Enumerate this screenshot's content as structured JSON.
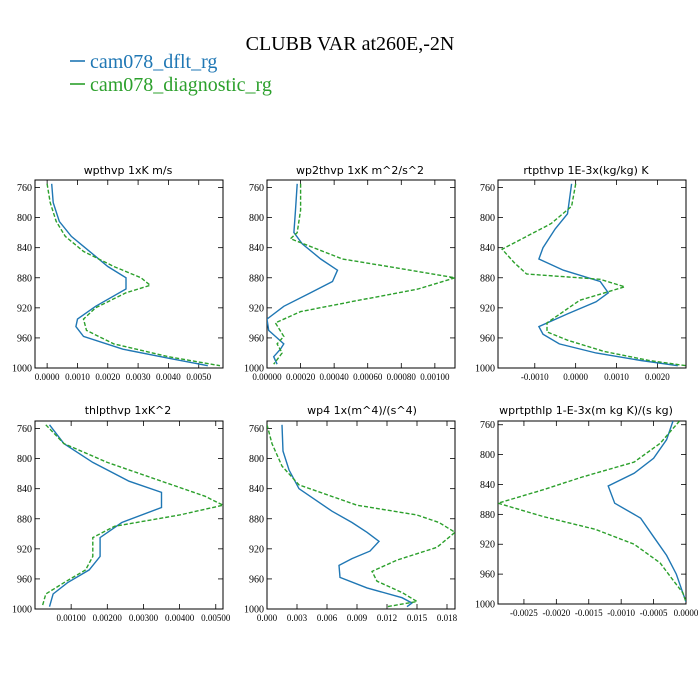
{
  "figure": {
    "title": "CLUBB VAR at260E,-2N",
    "legend": [
      {
        "label": "cam078_dflt_rg",
        "color": "#1f77b4",
        "dash": "solid"
      },
      {
        "label": "cam078_diagnostic_rg",
        "color": "#2ca02c",
        "dash": "dashed"
      }
    ]
  },
  "chart_data": [
    {
      "type": "line",
      "title": "wpthvp   1xK m/s",
      "ylim": [
        1000,
        750
      ],
      "yticks": [
        760,
        800,
        840,
        880,
        920,
        960,
        1000
      ],
      "ytick_labels": [
        "760",
        "800",
        "840",
        "880",
        "920",
        "960",
        "1000"
      ],
      "xlim": [
        -0.0004,
        0.0058
      ],
      "xticks": [
        0,
        0.001,
        0.002,
        0.003,
        0.004,
        0.005
      ],
      "xtick_labels": [
        "0.0000",
        "0.0010",
        "0.0020",
        "0.0030",
        "0.0040",
        "0.0050"
      ],
      "series": [
        {
          "name": "cam078_dflt_rg",
          "points": [
            [
              0.00015,
              755
            ],
            [
              0.0002,
              780
            ],
            [
              0.0004,
              805
            ],
            [
              0.0008,
              825
            ],
            [
              0.0014,
              845
            ],
            [
              0.002,
              865
            ],
            [
              0.0026,
              880
            ],
            [
              0.0026,
              895
            ],
            [
              0.0016,
              918
            ],
            [
              0.001,
              935
            ],
            [
              0.00095,
              945
            ],
            [
              0.0012,
              958
            ],
            [
              0.0025,
              975
            ],
            [
              0.004,
              987
            ],
            [
              0.0053,
              997
            ]
          ]
        },
        {
          "name": "cam078_diagnostic_rg",
          "points": [
            [
              0.0,
              755
            ],
            [
              0.0001,
              780
            ],
            [
              0.0003,
              805
            ],
            [
              0.0006,
              825
            ],
            [
              0.0012,
              845
            ],
            [
              0.0022,
              865
            ],
            [
              0.0031,
              880
            ],
            [
              0.0034,
              890
            ],
            [
              0.0026,
              900
            ],
            [
              0.0016,
              920
            ],
            [
              0.0012,
              935
            ],
            [
              0.0013,
              950
            ],
            [
              0.0022,
              968
            ],
            [
              0.004,
              985
            ],
            [
              0.0057,
              997
            ]
          ]
        }
      ]
    },
    {
      "type": "line",
      "title": "wp2thvp   1xK m^2/s^2",
      "ylim": [
        1000,
        750
      ],
      "yticks": [
        760,
        800,
        840,
        880,
        920,
        960,
        1000
      ],
      "ytick_labels": [
        "760",
        "800",
        "840",
        "880",
        "920",
        "960",
        "1000"
      ],
      "xlim": [
        0,
        0.00112
      ],
      "xticks": [
        0,
        0.0002,
        0.0004,
        0.0006,
        0.0008,
        0.001
      ],
      "xtick_labels": [
        "0.00000",
        "0.00020",
        "0.00040",
        "0.00060",
        "0.00080",
        "0.00100"
      ],
      "series": [
        {
          "name": "cam078_dflt_rg",
          "points": [
            [
              0.00018,
              755
            ],
            [
              0.00017,
              790
            ],
            [
              0.00016,
              820
            ],
            [
              0.00021,
              835
            ],
            [
              0.00032,
              855
            ],
            [
              0.00042,
              870
            ],
            [
              0.00039,
              885
            ],
            [
              0.00026,
              900
            ],
            [
              0.0001,
              918
            ],
            [
              0.0,
              935
            ],
            [
              1e-05,
              950
            ],
            [
              5e-05,
              958
            ],
            [
              0.0001,
              968
            ],
            [
              8e-05,
              975
            ],
            [
              4e-05,
              985
            ],
            [
              6e-05,
              995
            ]
          ]
        },
        {
          "name": "cam078_diagnostic_rg",
          "points": [
            [
              0.0002,
              755
            ],
            [
              0.0002,
              790
            ],
            [
              0.00018,
              820
            ],
            [
              0.00014,
              828
            ],
            [
              0.00045,
              855
            ],
            [
              0.0008,
              868
            ],
            [
              0.00112,
              880
            ],
            [
              0.0009,
              895
            ],
            [
              0.0005,
              912
            ],
            [
              0.0002,
              925
            ],
            [
              5e-05,
              940
            ],
            [
              0.0001,
              958
            ],
            [
              6e-05,
              968
            ],
            [
              9e-05,
              980
            ],
            [
              4e-05,
              995
            ]
          ]
        }
      ]
    },
    {
      "type": "line",
      "title": "rtpthvp   1E-3x(kg/kg) K",
      "ylim": [
        1000,
        750
      ],
      "yticks": [
        760,
        800,
        840,
        880,
        920,
        960,
        1000
      ],
      "ytick_labels": [
        "760",
        "800",
        "840",
        "880",
        "920",
        "960",
        "1000"
      ],
      "xlim": [
        -0.0019,
        0.0027
      ],
      "xticks": [
        -0.001,
        0,
        0.001,
        0.002
      ],
      "xtick_labels": [
        "-0.0010",
        "0.0000",
        "0.0010",
        "0.0020"
      ],
      "series": [
        {
          "name": "cam078_dflt_rg",
          "points": [
            [
              -0.0001,
              755
            ],
            [
              -0.0002,
              795
            ],
            [
              -0.0005,
              815
            ],
            [
              -0.0008,
              840
            ],
            [
              -0.0009,
              855
            ],
            [
              -0.0003,
              870
            ],
            [
              0.0006,
              885
            ],
            [
              0.0008,
              900
            ],
            [
              0.0005,
              912
            ],
            [
              -0.0002,
              928
            ],
            [
              -0.0009,
              945
            ],
            [
              -0.0008,
              955
            ],
            [
              -0.0004,
              968
            ],
            [
              0.0005,
              980
            ],
            [
              0.0016,
              990
            ],
            [
              0.0025,
              997
            ]
          ]
        },
        {
          "name": "cam078_diagnostic_rg",
          "points": [
            [
              0.0,
              755
            ],
            [
              -0.0001,
              785
            ],
            [
              -0.0006,
              808
            ],
            [
              -0.0012,
              825
            ],
            [
              -0.0018,
              842
            ],
            [
              -0.0015,
              860
            ],
            [
              -0.0012,
              875
            ],
            [
              0.0006,
              882
            ],
            [
              0.0012,
              892
            ],
            [
              0.0001,
              910
            ],
            [
              -0.0007,
              940
            ],
            [
              -0.0007,
              952
            ],
            [
              -0.0002,
              963
            ],
            [
              0.0007,
              978
            ],
            [
              0.0018,
              990
            ],
            [
              0.0027,
              997
            ]
          ]
        }
      ]
    },
    {
      "type": "line",
      "title": "thlpthvp   1xK^2",
      "ylim": [
        1000,
        750
      ],
      "yticks": [
        760,
        800,
        840,
        880,
        920,
        960,
        1000
      ],
      "ytick_labels": [
        "760",
        "800",
        "840",
        "880",
        "920",
        "960",
        "1000"
      ],
      "xlim": [
        0,
        0.0052
      ],
      "xticks": [
        0.001,
        0.002,
        0.003,
        0.004,
        0.005
      ],
      "xtick_labels": [
        "0.00100",
        "0.00200",
        "0.00300",
        "0.00400",
        "0.00500"
      ],
      "series": [
        {
          "name": "cam078_dflt_rg",
          "points": [
            [
              0.0004,
              755
            ],
            [
              0.0008,
              780
            ],
            [
              0.0016,
              805
            ],
            [
              0.0026,
              830
            ],
            [
              0.0035,
              845
            ],
            [
              0.0035,
              865
            ],
            [
              0.0024,
              885
            ],
            [
              0.0018,
              905
            ],
            [
              0.0018,
              930
            ],
            [
              0.0015,
              948
            ],
            [
              0.0009,
              965
            ],
            [
              0.0005,
              980
            ],
            [
              0.0004,
              997
            ]
          ]
        },
        {
          "name": "cam078_diagnostic_rg",
          "points": [
            [
              0.0003,
              755
            ],
            [
              0.0008,
              780
            ],
            [
              0.002,
              805
            ],
            [
              0.0035,
              830
            ],
            [
              0.0047,
              850
            ],
            [
              0.0052,
              862
            ],
            [
              0.004,
              875
            ],
            [
              0.0022,
              890
            ],
            [
              0.0016,
              905
            ],
            [
              0.0016,
              930
            ],
            [
              0.0014,
              948
            ],
            [
              0.0008,
              965
            ],
            [
              0.0003,
              980
            ],
            [
              0.0002,
              997
            ]
          ]
        }
      ]
    },
    {
      "type": "line",
      "title": "wp4   1x(m^4)/(s^4)",
      "ylim": [
        1000,
        750
      ],
      "yticks": [
        760,
        800,
        840,
        880,
        920,
        960,
        1000
      ],
      "ytick_labels": [
        "760",
        "800",
        "840",
        "880",
        "920",
        "960",
        "1000"
      ],
      "xlim": [
        0,
        0.0188
      ],
      "xticks": [
        0,
        0.003,
        0.006,
        0.009,
        0.012,
        0.015,
        0.018
      ],
      "xtick_labels": [
        "0.000",
        "0.003",
        "0.006",
        "0.009",
        "0.012",
        "0.015",
        "0.018"
      ],
      "series": [
        {
          "name": "cam078_dflt_rg",
          "points": [
            [
              0.0015,
              755
            ],
            [
              0.0016,
              790
            ],
            [
              0.0022,
              815
            ],
            [
              0.0032,
              840
            ],
            [
              0.0065,
              870
            ],
            [
              0.0085,
              885
            ],
            [
              0.01,
              898
            ],
            [
              0.0112,
              910
            ],
            [
              0.0103,
              923
            ],
            [
              0.0085,
              933
            ],
            [
              0.0072,
              942
            ],
            [
              0.0073,
              958
            ],
            [
              0.01,
              972
            ],
            [
              0.0135,
              985
            ],
            [
              0.0145,
              992
            ],
            [
              0.014,
              997
            ]
          ]
        },
        {
          "name": "cam078_diagnostic_rg",
          "points": [
            [
              0.0,
              755
            ],
            [
              0.0005,
              780
            ],
            [
              0.0015,
              810
            ],
            [
              0.0032,
              835
            ],
            [
              0.009,
              862
            ],
            [
              0.015,
              875
            ],
            [
              0.0172,
              885
            ],
            [
              0.0188,
              898
            ],
            [
              0.017,
              918
            ],
            [
              0.013,
              935
            ],
            [
              0.0105,
              950
            ],
            [
              0.011,
              963
            ],
            [
              0.0135,
              978
            ],
            [
              0.015,
              990
            ],
            [
              0.012,
              997
            ]
          ]
        }
      ]
    },
    {
      "type": "line",
      "title": "wprtpthlp   1-E-3x(m kg K)/(s kg)",
      "ylim": [
        1000,
        755
      ],
      "yticks": [
        760,
        800,
        840,
        880,
        920,
        960,
        1000
      ],
      "ytick_labels": [
        "760",
        "800",
        "840",
        "880",
        "920",
        "960",
        "1000"
      ],
      "xlim": [
        -0.0029,
        0
      ],
      "xticks": [
        -0.0025,
        -0.002,
        -0.0015,
        -0.001,
        -0.0005,
        0
      ],
      "xtick_labels": [
        "-0.0025",
        "-0.0020",
        "-0.0015",
        "-0.0010",
        "-0.0005",
        "0.0000"
      ],
      "series": [
        {
          "name": "cam078_dflt_rg",
          "points": [
            [
              -0.0002,
              755
            ],
            [
              -0.0003,
              780
            ],
            [
              -0.0005,
              805
            ],
            [
              -0.0008,
              825
            ],
            [
              -0.0012,
              842
            ],
            [
              -0.0011,
              865
            ],
            [
              -0.0007,
              885
            ],
            [
              -0.0005,
              910
            ],
            [
              -0.0003,
              935
            ],
            [
              -0.00015,
              960
            ],
            [
              -5e-05,
              985
            ],
            [
              0.0,
              997
            ]
          ]
        },
        {
          "name": "cam078_diagnostic_rg",
          "points": [
            [
              -0.0001,
              755
            ],
            [
              -0.0004,
              785
            ],
            [
              -0.0008,
              810
            ],
            [
              -0.0016,
              830
            ],
            [
              -0.0022,
              847
            ],
            [
              -0.0029,
              865
            ],
            [
              -0.0022,
              883
            ],
            [
              -0.0014,
              900
            ],
            [
              -0.0008,
              920
            ],
            [
              -0.0004,
              945
            ],
            [
              -0.0002,
              968
            ],
            [
              -5e-05,
              985
            ],
            [
              0.0,
              997
            ]
          ]
        }
      ]
    }
  ]
}
